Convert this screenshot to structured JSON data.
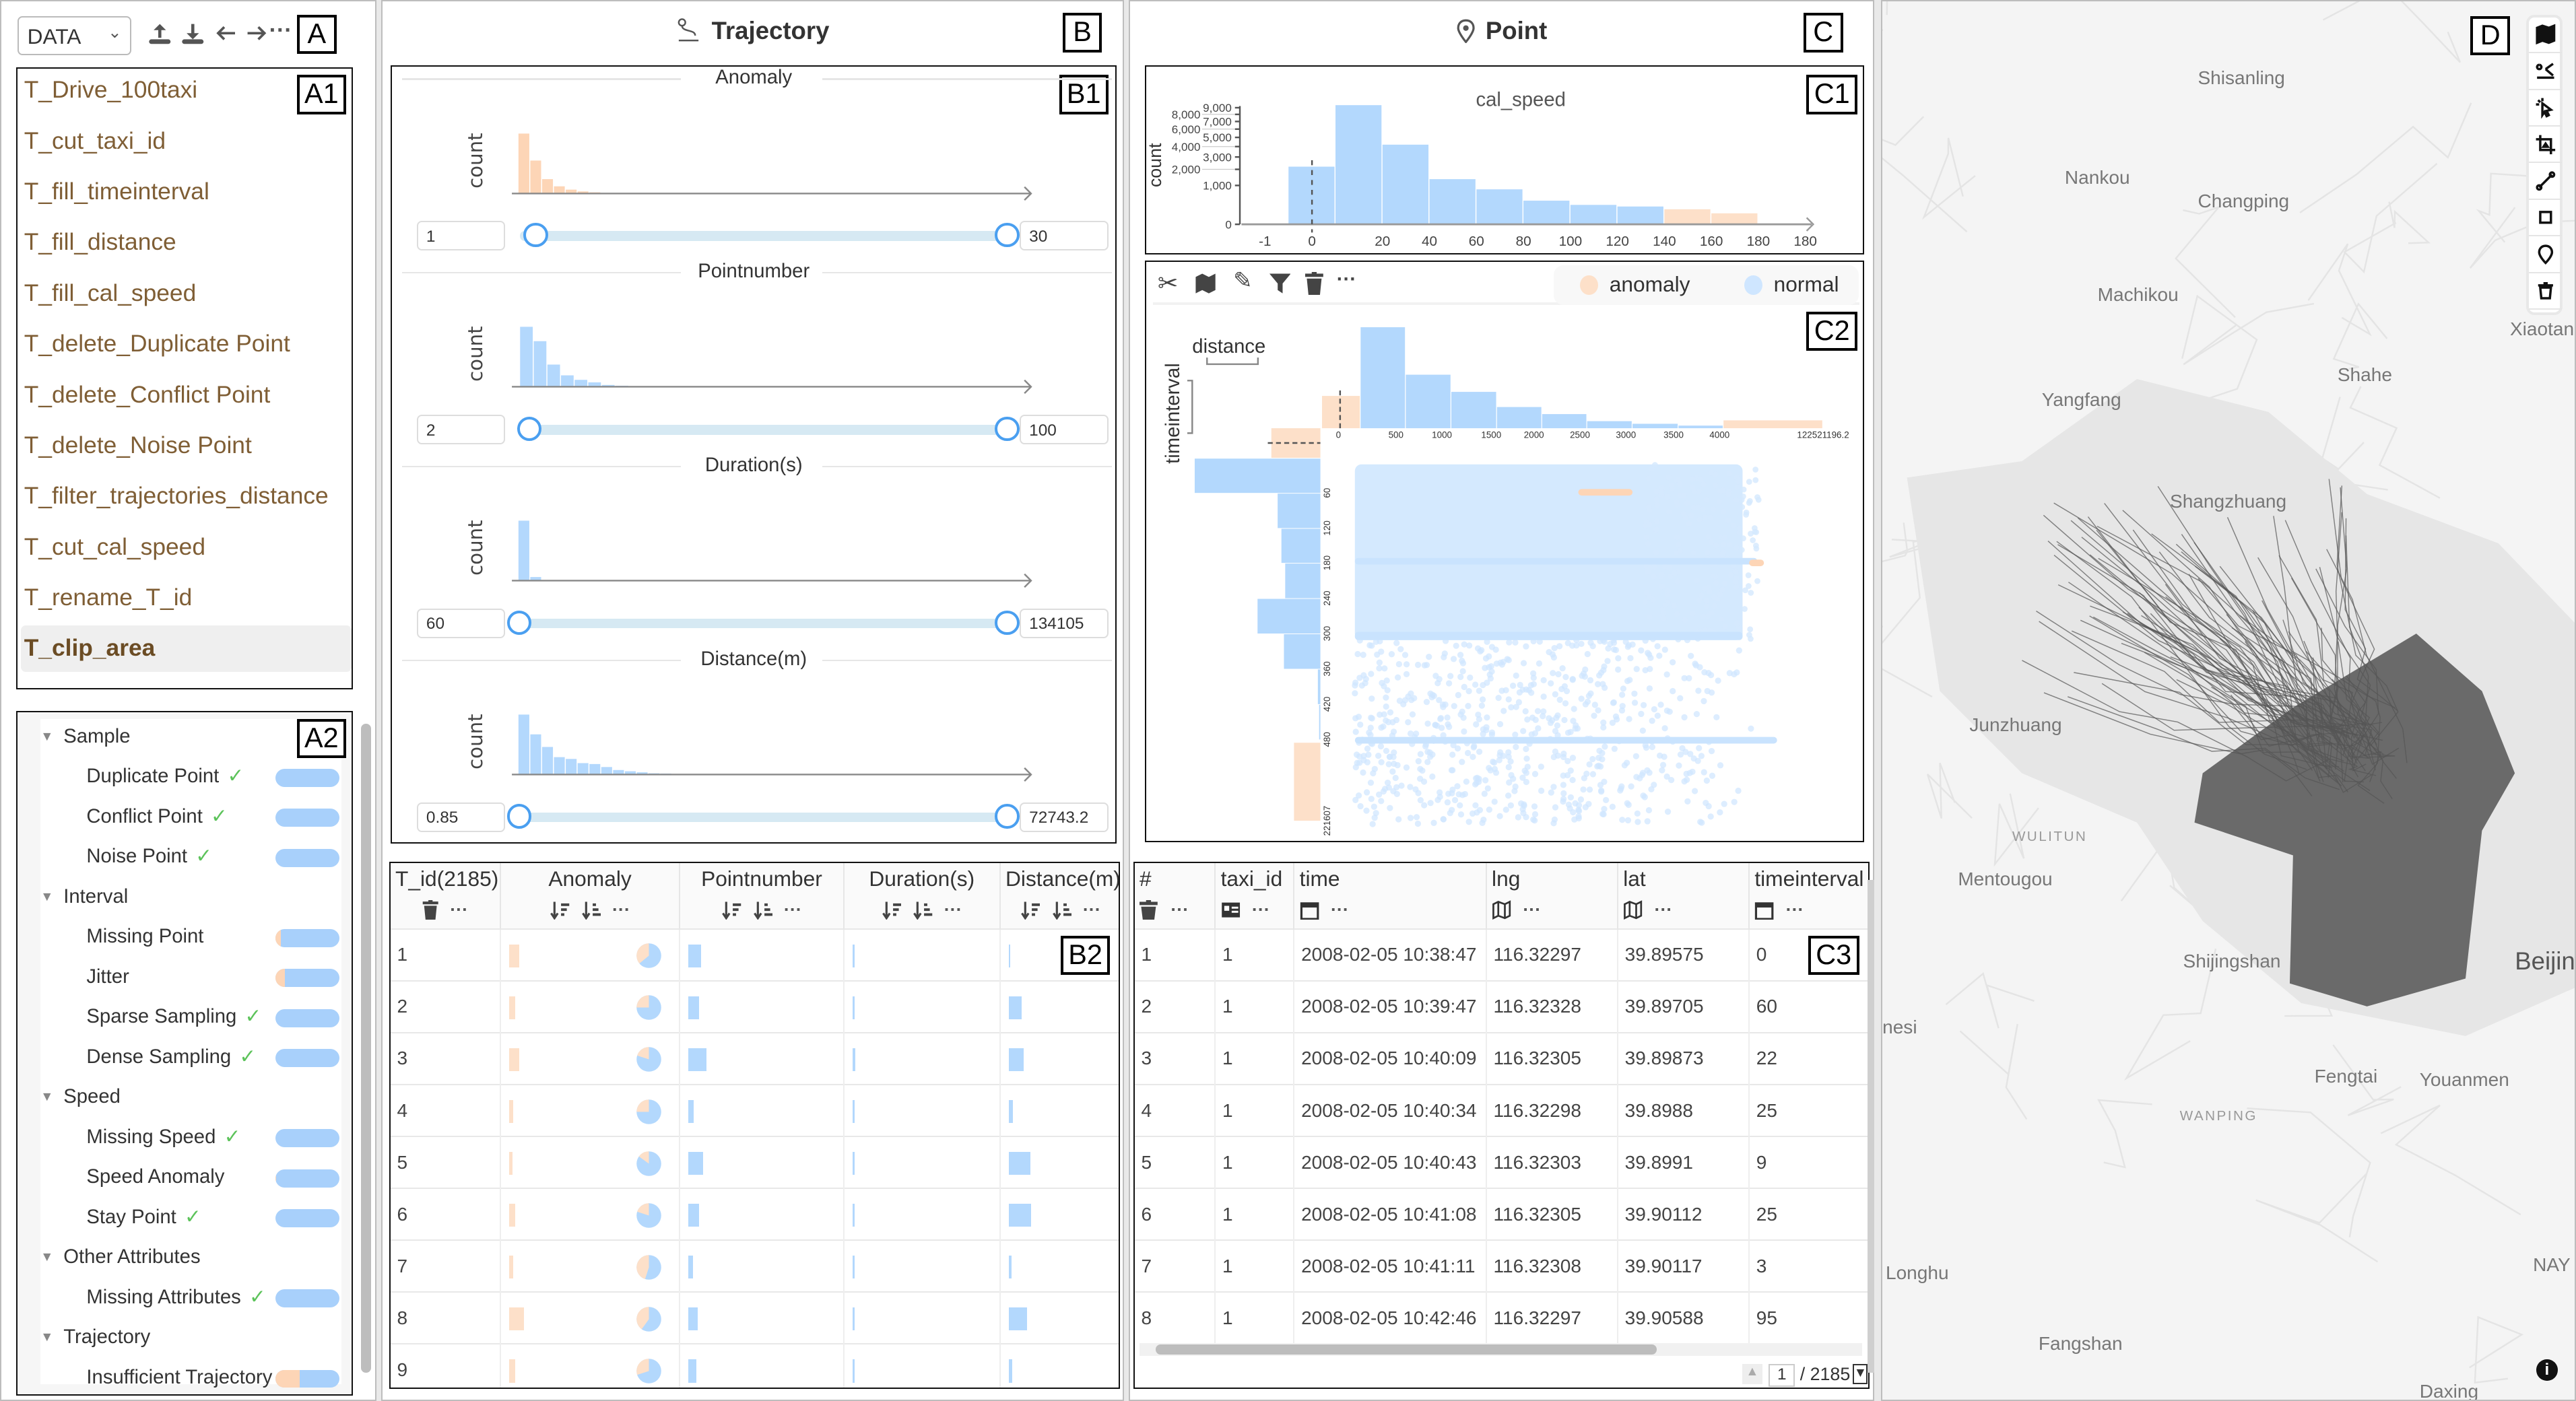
{
  "colors": {
    "anomaly": "#fde0c9",
    "normal": "#b3d8fd",
    "accent": "#4a9ff0",
    "operation_text": "#7f5e35",
    "check": "#5cc35a",
    "trajectory": "#555555"
  },
  "panel_tags": {
    "A": "A",
    "A1": "A1",
    "A2": "A2",
    "B": "B",
    "B1": "B1",
    "B2": "B2",
    "C": "C",
    "C1": "C1",
    "C2": "C2",
    "C3": "C3",
    "D": "D"
  },
  "toolbar": {
    "dataset_select": "DATA",
    "icons": [
      "upload-icon",
      "download-icon",
      "undo-icon",
      "redo-icon",
      "more-icon"
    ],
    "more": "···"
  },
  "operations": [
    "T_Drive_100taxi",
    "T_cut_taxi_id",
    "T_fill_timeinterval",
    "T_fill_distance",
    "T_fill_cal_speed",
    "T_delete_Duplicate Point",
    "T_delete_Conflict Point",
    "T_delete_Noise Point",
    "T_filter_trajectories_distance",
    "T_cut_cal_speed",
    "T_rename_T_id",
    "T_clip_area"
  ],
  "selected_operation": "T_clip_area",
  "quality_tree": [
    {
      "group": "Sample",
      "items": [
        {
          "label": "Duplicate Point",
          "checked": true,
          "anomaly_fraction": 0
        },
        {
          "label": "Conflict Point",
          "checked": true,
          "anomaly_fraction": 0
        },
        {
          "label": "Noise Point",
          "checked": true,
          "anomaly_fraction": 0
        }
      ]
    },
    {
      "group": "Interval",
      "items": [
        {
          "label": "Missing Point",
          "checked": false,
          "anomaly_fraction": 0.08
        },
        {
          "label": "Jitter",
          "checked": false,
          "anomaly_fraction": 0.15
        },
        {
          "label": "Sparse Sampling",
          "checked": true,
          "anomaly_fraction": 0
        },
        {
          "label": "Dense Sampling",
          "checked": true,
          "anomaly_fraction": 0
        }
      ]
    },
    {
      "group": "Speed",
      "items": [
        {
          "label": "Missing Speed",
          "checked": true,
          "anomaly_fraction": 0
        },
        {
          "label": "Speed Anomaly",
          "checked": false,
          "anomaly_fraction": 0.01
        },
        {
          "label": "Stay Point",
          "checked": true,
          "anomaly_fraction": 0
        }
      ]
    },
    {
      "group": "Other Attributes",
      "items": [
        {
          "label": "Missing Attributes",
          "checked": true,
          "anomaly_fraction": 0
        }
      ]
    },
    {
      "group": "Trajectory",
      "items": [
        {
          "label": "Insufficient Trajectory",
          "checked": false,
          "anomaly_fraction": 0.38
        }
      ]
    }
  ],
  "check_mark": "✓",
  "trajectory_panel": {
    "title": "Trajectory",
    "filters": [
      {
        "title": "Anomaly",
        "ylabel": "count",
        "kind": "anomaly",
        "relative_counts": [
          100,
          55,
          24,
          12,
          6.5,
          3.5,
          2,
          0.8
        ],
        "min": "1",
        "max": "30"
      },
      {
        "title": "Pointnumber",
        "ylabel": "count",
        "kind": "normal",
        "relative_counts": [
          100,
          76,
          37,
          19,
          11.5,
          7.3,
          3,
          1.7,
          0.8,
          0.4
        ],
        "min": "2",
        "max": "100"
      },
      {
        "title": "Duration(s)",
        "ylabel": "count",
        "kind": "normal",
        "relative_counts": [
          100,
          6
        ],
        "min": "60",
        "max": "134105"
      },
      {
        "title": "Distance(m)",
        "ylabel": "count",
        "kind": "normal",
        "relative_counts": [
          100,
          67,
          46,
          29,
          26,
          19,
          17.5,
          12.5,
          7.5,
          5.4,
          3.7,
          2,
          1.6,
          0.8,
          0.8,
          0.4,
          0.4,
          0.4,
          0.4
        ],
        "min": "0.85",
        "max": "72743.2"
      }
    ]
  },
  "trajectory_table": {
    "columns": [
      "T_id(2185)",
      "Anomaly",
      "Pointnumber",
      "Duration(s)",
      "Distance(m)"
    ],
    "more": "···",
    "rows": [
      {
        "id": "1",
        "anomaly": 0.5,
        "anomaly_ratio": 0.36,
        "pointnumber": 0.35,
        "duration": 0.03,
        "distance": 0.04
      },
      {
        "id": "2",
        "anomaly": 0.3,
        "anomaly_ratio": 0.25,
        "pointnumber": 0.3,
        "duration": 0.03,
        "distance": 0.35
      },
      {
        "id": "3",
        "anomaly": 0.5,
        "anomaly_ratio": 0.2,
        "pointnumber": 0.5,
        "duration": 0.08,
        "distance": 0.42
      },
      {
        "id": "4",
        "anomaly": 0.2,
        "anomaly_ratio": 0.25,
        "pointnumber": 0.15,
        "duration": 0.02,
        "distance": 0.12
      },
      {
        "id": "5",
        "anomaly": 0.15,
        "anomaly_ratio": 0.15,
        "pointnumber": 0.4,
        "duration": 0.03,
        "distance": 0.6
      },
      {
        "id": "6",
        "anomaly": 0.3,
        "anomaly_ratio": 0.2,
        "pointnumber": 0.3,
        "duration": 0.03,
        "distance": 0.62
      },
      {
        "id": "7",
        "anomaly": 0.2,
        "anomaly_ratio": 0.45,
        "pointnumber": 0.12,
        "duration": 0.02,
        "distance": 0.08
      },
      {
        "id": "8",
        "anomaly": 0.75,
        "anomaly_ratio": 0.4,
        "pointnumber": 0.25,
        "duration": 0.03,
        "distance": 0.5
      },
      {
        "id": "9",
        "anomaly": 0.3,
        "anomaly_ratio": 0.3,
        "pointnumber": 0.22,
        "duration": 0.03,
        "distance": 0.1
      }
    ]
  },
  "point_panel": {
    "title": "Point",
    "tools": [
      "scissors-icon",
      "map-icon",
      "pencil-icon",
      "filter-icon",
      "trash-icon",
      "more-icon"
    ],
    "more": "···",
    "legend": [
      {
        "label": "anomaly",
        "color": "#fde0c9"
      },
      {
        "label": "normal",
        "color": "#cfe6ff"
      }
    ]
  },
  "chart_data": [
    {
      "type": "bar",
      "title": "cal_speed",
      "ylabel": "count",
      "yscale": "sqrt",
      "y_ticks": [
        "0",
        "1,000",
        "2,000",
        "3,000",
        "4,000",
        "5,000",
        "6,000",
        "7,000",
        "8,000",
        "9,000"
      ],
      "x_tick_labels": [
        "-1",
        "0",
        "20",
        "40",
        "60",
        "80",
        "100",
        "120",
        "140",
        "160",
        "180",
        "180"
      ],
      "bins": [
        "0-10",
        "10-20",
        "20-40",
        "40-60",
        "60-80",
        "80-100",
        "100-120",
        "120-140",
        "140-160",
        "160-180"
      ],
      "values": [
        2200,
        9400,
        4200,
        1350,
        810,
        370,
        250,
        210,
        150,
        80
      ],
      "status": [
        "normal",
        "normal",
        "normal",
        "normal",
        "normal",
        "normal",
        "normal",
        "normal",
        "anomaly",
        "anomaly"
      ],
      "ylim": [
        0,
        9000
      ]
    },
    {
      "type": "bar",
      "title": "distance",
      "x_tick_labels": [
        "0",
        "500",
        "1000",
        "1500",
        "2000",
        "2500",
        "3000",
        "3500",
        "4000",
        "122521196.2"
      ],
      "relative_values": [
        32,
        100,
        53,
        36,
        21,
        14,
        7,
        4.4,
        2.6,
        7.8
      ],
      "status": [
        "anomaly",
        "normal",
        "normal",
        "normal",
        "normal",
        "normal",
        "normal",
        "normal",
        "normal",
        "anomaly"
      ]
    },
    {
      "type": "bar",
      "orientation": "horizontal",
      "title": "timeinterval",
      "y_tick_labels": [
        "60",
        "120",
        "180",
        "240",
        "300",
        "360",
        "420",
        "480",
        "221607"
      ],
      "relative_values": [
        39,
        100,
        34,
        31,
        28,
        50,
        29,
        2,
        1,
        21
      ],
      "status": [
        "anomaly",
        "normal",
        "normal",
        "normal",
        "normal",
        "normal",
        "normal",
        "normal",
        "normal",
        "anomaly"
      ]
    }
  ],
  "point_table": {
    "columns": [
      {
        "label": "#",
        "icon": "trash-icon"
      },
      {
        "label": "taxi_id",
        "icon": "id-card-icon"
      },
      {
        "label": "time",
        "icon": "calendar-icon"
      },
      {
        "label": "lng",
        "icon": "map-icon"
      },
      {
        "label": "lat",
        "icon": "map-icon"
      },
      {
        "label": "timeinterval",
        "icon": "calendar-icon"
      }
    ],
    "more": "···",
    "rows": [
      [
        "1",
        "1",
        "2008-02-05 10:38:47",
        "116.32297",
        "39.89575",
        "0"
      ],
      [
        "2",
        "1",
        "2008-02-05 10:39:47",
        "116.32328",
        "39.89705",
        "60"
      ],
      [
        "3",
        "1",
        "2008-02-05 10:40:09",
        "116.32305",
        "39.89873",
        "22"
      ],
      [
        "4",
        "1",
        "2008-02-05 10:40:34",
        "116.32298",
        "39.8988",
        "25"
      ],
      [
        "5",
        "1",
        "2008-02-05 10:40:43",
        "116.32303",
        "39.8991",
        "9"
      ],
      [
        "6",
        "1",
        "2008-02-05 10:41:08",
        "116.32305",
        "39.90112",
        "25"
      ],
      [
        "7",
        "1",
        "2008-02-05 10:41:11",
        "116.32308",
        "39.90117",
        "3"
      ],
      [
        "8",
        "1",
        "2008-02-05 10:42:46",
        "116.32297",
        "39.90588",
        "95"
      ]
    ],
    "pager": {
      "page": "1",
      "total": "/ 2185"
    }
  },
  "map": {
    "tools": [
      "map-icon",
      "scissors-icon",
      "click-select-icon",
      "crop-icon",
      "line-icon",
      "rectangle-icon",
      "pin-icon",
      "trash-icon"
    ],
    "places": [
      "Shisanling",
      "Changping",
      "Nankou",
      "Machikou",
      "Shahe",
      "Yangfang",
      "Shangzhuang",
      "Junzhuang",
      "WULITUN",
      "Mentougou",
      "Shijingshan",
      "Beijin",
      "Fengtai",
      "Youanmen",
      "WANPING",
      "Fangshan",
      "Daxing",
      "Longhu",
      "NAY",
      "Xiaotangs",
      "nesi"
    ],
    "info": "i"
  }
}
